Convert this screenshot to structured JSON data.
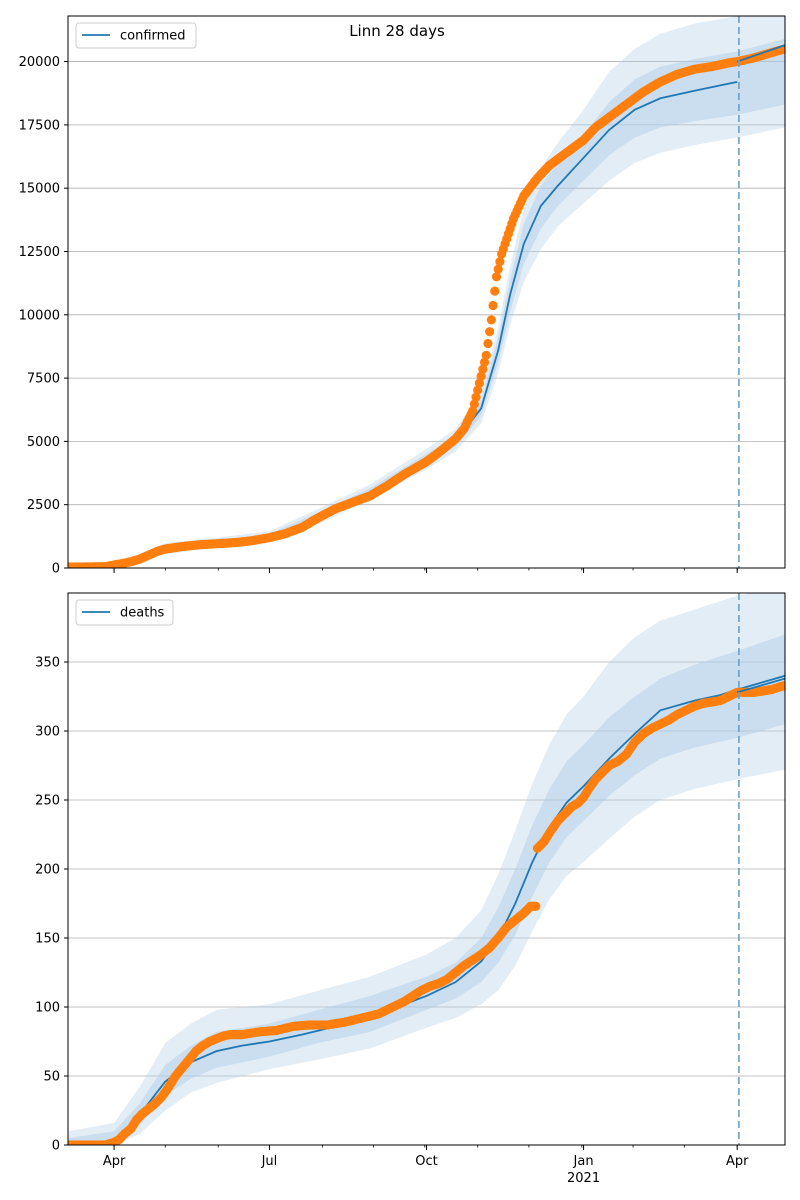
{
  "colors": {
    "line": "#1f77b4",
    "obs": "#ff7f0e",
    "band": "#aecbe6",
    "grid": "#b0b0b0",
    "vline": "#6a9fc8"
  },
  "chart_data": [
    {
      "type": "line",
      "title": "Linn 28 days",
      "legend": "top-left",
      "grid": "y",
      "x_ticks": [
        {
          "d": 0,
          "label": "Apr"
        },
        {
          "d": 91,
          "label": "Jul"
        },
        {
          "d": 183,
          "label": "Oct"
        },
        {
          "d": 275,
          "label": "Jan",
          "sub": "2021"
        },
        {
          "d": 365,
          "label": "Apr"
        }
      ],
      "ylim": [
        0,
        21800
      ],
      "y_ticks": [
        0,
        2500,
        5000,
        7500,
        10000,
        12500,
        15000,
        17500,
        20000
      ],
      "series_name": "confirmed",
      "model": [
        [
          -27,
          0
        ],
        [
          0,
          80
        ],
        [
          15,
          350
        ],
        [
          30,
          750
        ],
        [
          45,
          920
        ],
        [
          60,
          990
        ],
        [
          75,
          1080
        ],
        [
          91,
          1250
        ],
        [
          105,
          1550
        ],
        [
          120,
          2050
        ],
        [
          135,
          2550
        ],
        [
          150,
          3000
        ],
        [
          165,
          3600
        ],
        [
          183,
          4300
        ],
        [
          200,
          5000
        ],
        [
          215,
          6300
        ],
        [
          225,
          8600
        ],
        [
          232,
          10800
        ],
        [
          240,
          12800
        ],
        [
          250,
          14300
        ],
        [
          260,
          15100
        ],
        [
          275,
          16200
        ],
        [
          290,
          17300
        ],
        [
          305,
          18100
        ],
        [
          320,
          18550
        ],
        [
          340,
          18850
        ],
        [
          365,
          19200
        ]
      ],
      "band_inner": [
        [
          -27,
          0,
          0
        ],
        [
          0,
          60,
          110
        ],
        [
          30,
          650,
          860
        ],
        [
          60,
          900,
          1080
        ],
        [
          91,
          1150,
          1350
        ],
        [
          120,
          1900,
          2200
        ],
        [
          150,
          2850,
          3150
        ],
        [
          183,
          4100,
          4500
        ],
        [
          200,
          4800,
          5200
        ],
        [
          215,
          6000,
          6600
        ],
        [
          225,
          8100,
          9100
        ],
        [
          232,
          10100,
          11400
        ],
        [
          240,
          12000,
          13600
        ],
        [
          250,
          13400,
          15100
        ],
        [
          260,
          14300,
          16000
        ],
        [
          275,
          15300,
          17100
        ],
        [
          290,
          16300,
          18400
        ],
        [
          305,
          17000,
          19300
        ],
        [
          320,
          17400,
          19800
        ],
        [
          340,
          17650,
          20100
        ],
        [
          365,
          17900,
          20400
        ],
        [
          393,
          18300,
          20900
        ]
      ],
      "band_outer": [
        [
          -27,
          0,
          0
        ],
        [
          0,
          40,
          140
        ],
        [
          30,
          550,
          980
        ],
        [
          60,
          800,
          1200
        ],
        [
          91,
          1050,
          1450
        ],
        [
          120,
          1750,
          2350
        ],
        [
          150,
          2700,
          3300
        ],
        [
          183,
          3900,
          4700
        ],
        [
          200,
          4600,
          5500
        ],
        [
          215,
          5700,
          6900
        ],
        [
          225,
          7700,
          9500
        ],
        [
          232,
          9600,
          11900
        ],
        [
          240,
          11300,
          14200
        ],
        [
          250,
          12600,
          15800
        ],
        [
          260,
          13500,
          16800
        ],
        [
          275,
          14400,
          18100
        ],
        [
          290,
          15300,
          19600
        ],
        [
          305,
          16000,
          20500
        ],
        [
          320,
          16400,
          21100
        ],
        [
          340,
          16700,
          21500
        ],
        [
          365,
          17000,
          21800
        ],
        [
          393,
          17400,
          22300
        ]
      ],
      "obs_points": [
        [
          -27,
          40
        ],
        [
          -20,
          40
        ],
        [
          -10,
          50
        ],
        [
          -5,
          50
        ],
        [
          0,
          120
        ],
        [
          5,
          180
        ],
        [
          10,
          250
        ],
        [
          15,
          350
        ],
        [
          20,
          500
        ],
        [
          25,
          650
        ],
        [
          30,
          750
        ],
        [
          40,
          850
        ],
        [
          50,
          920
        ],
        [
          60,
          960
        ],
        [
          70,
          1000
        ],
        [
          80,
          1070
        ],
        [
          91,
          1200
        ],
        [
          100,
          1350
        ],
        [
          110,
          1600
        ],
        [
          120,
          2000
        ],
        [
          130,
          2350
        ],
        [
          140,
          2600
        ],
        [
          150,
          2850
        ],
        [
          160,
          3250
        ],
        [
          170,
          3700
        ],
        [
          183,
          4200
        ],
        [
          190,
          4550
        ],
        [
          200,
          5100
        ],
        [
          205,
          5500
        ],
        [
          210,
          6200
        ],
        [
          214,
          7300
        ],
        [
          218,
          8400
        ],
        [
          221,
          9800
        ],
        [
          224,
          11500
        ],
        [
          227,
          12400
        ],
        [
          230,
          13000
        ],
        [
          234,
          13800
        ],
        [
          240,
          14700
        ],
        [
          248,
          15400
        ],
        [
          255,
          15900
        ],
        [
          265,
          16400
        ],
        [
          275,
          16900
        ],
        [
          282,
          17400
        ],
        [
          290,
          17800
        ],
        [
          300,
          18300
        ],
        [
          310,
          18800
        ],
        [
          320,
          19200
        ],
        [
          330,
          19500
        ],
        [
          340,
          19700
        ],
        [
          350,
          19800
        ],
        [
          360,
          19950
        ],
        [
          365,
          20000
        ],
        [
          375,
          20150
        ],
        [
          385,
          20350
        ],
        [
          393,
          20500
        ]
      ],
      "forecast_line": [
        [
          365,
          20000
        ],
        [
          393,
          20650
        ]
      ],
      "vline_d": 366
    },
    {
      "type": "line",
      "title": "",
      "legend": "top-left",
      "grid": "y",
      "x_ticks": [
        {
          "d": 0,
          "label": "Apr"
        },
        {
          "d": 91,
          "label": "Jul"
        },
        {
          "d": 183,
          "label": "Oct"
        },
        {
          "d": 275,
          "label": "Jan",
          "sub": "2021"
        },
        {
          "d": 365,
          "label": "Apr"
        }
      ],
      "ylim": [
        0,
        400
      ],
      "y_ticks": [
        0,
        50,
        100,
        150,
        200,
        250,
        300,
        350
      ],
      "series_name": "deaths",
      "model": [
        [
          -27,
          0
        ],
        [
          -10,
          0
        ],
        [
          0,
          3
        ],
        [
          10,
          14
        ],
        [
          20,
          30
        ],
        [
          30,
          46
        ],
        [
          45,
          60
        ],
        [
          60,
          68
        ],
        [
          75,
          72
        ],
        [
          91,
          75
        ],
        [
          110,
          80
        ],
        [
          130,
          86
        ],
        [
          150,
          93
        ],
        [
          170,
          102
        ],
        [
          183,
          108
        ],
        [
          200,
          118
        ],
        [
          215,
          133
        ],
        [
          225,
          150
        ],
        [
          235,
          175
        ],
        [
          245,
          205
        ],
        [
          255,
          230
        ],
        [
          265,
          248
        ],
        [
          275,
          260
        ],
        [
          290,
          280
        ],
        [
          305,
          298
        ],
        [
          320,
          315
        ],
        [
          340,
          322
        ],
        [
          355,
          326
        ],
        [
          365,
          330
        ],
        [
          393,
          340
        ]
      ],
      "band_inner": [
        [
          -27,
          0,
          5
        ],
        [
          0,
          0,
          10
        ],
        [
          15,
          14,
          30
        ],
        [
          30,
          36,
          58
        ],
        [
          45,
          48,
          72
        ],
        [
          60,
          56,
          82
        ],
        [
          91,
          64,
          88
        ],
        [
          120,
          74,
          98
        ],
        [
          150,
          82,
          108
        ],
        [
          183,
          98,
          122
        ],
        [
          200,
          106,
          132
        ],
        [
          215,
          118,
          150
        ],
        [
          225,
          132,
          172
        ],
        [
          235,
          152,
          200
        ],
        [
          245,
          180,
          232
        ],
        [
          255,
          205,
          258
        ],
        [
          265,
          223,
          278
        ],
        [
          275,
          235,
          290
        ],
        [
          290,
          253,
          310
        ],
        [
          305,
          268,
          325
        ],
        [
          320,
          280,
          338
        ],
        [
          340,
          288,
          348
        ],
        [
          365,
          295,
          358
        ],
        [
          393,
          305,
          370
        ]
      ],
      "band_outer": [
        [
          -27,
          0,
          10
        ],
        [
          0,
          0,
          16
        ],
        [
          15,
          8,
          42
        ],
        [
          30,
          25,
          74
        ],
        [
          45,
          38,
          88
        ],
        [
          60,
          45,
          98
        ],
        [
          91,
          55,
          102
        ],
        [
          120,
          62,
          112
        ],
        [
          150,
          70,
          122
        ],
        [
          183,
          85,
          138
        ],
        [
          200,
          92,
          150
        ],
        [
          215,
          102,
          170
        ],
        [
          225,
          112,
          196
        ],
        [
          235,
          130,
          228
        ],
        [
          245,
          155,
          262
        ],
        [
          255,
          178,
          290
        ],
        [
          265,
          195,
          312
        ],
        [
          275,
          205,
          325
        ],
        [
          290,
          222,
          350
        ],
        [
          305,
          238,
          368
        ],
        [
          320,
          250,
          380
        ],
        [
          340,
          258,
          388
        ],
        [
          365,
          265,
          398
        ],
        [
          393,
          272,
          405
        ]
      ],
      "obs_points": [
        [
          -27,
          0
        ],
        [
          -20,
          0
        ],
        [
          -15,
          0
        ],
        [
          -10,
          0
        ],
        [
          -5,
          0
        ],
        [
          0,
          2
        ],
        [
          3,
          4
        ],
        [
          6,
          8
        ],
        [
          10,
          12
        ],
        [
          13,
          18
        ],
        [
          16,
          22
        ],
        [
          20,
          26
        ],
        [
          24,
          30
        ],
        [
          28,
          35
        ],
        [
          32,
          42
        ],
        [
          36,
          50
        ],
        [
          40,
          56
        ],
        [
          44,
          62
        ],
        [
          48,
          68
        ],
        [
          52,
          72
        ],
        [
          56,
          75
        ],
        [
          60,
          77
        ],
        [
          64,
          79
        ],
        [
          68,
          80
        ],
        [
          75,
          80
        ],
        [
          85,
          82
        ],
        [
          95,
          83
        ],
        [
          105,
          86
        ],
        [
          115,
          87
        ],
        [
          125,
          87
        ],
        [
          135,
          89
        ],
        [
          145,
          92
        ],
        [
          155,
          95
        ],
        [
          160,
          98
        ],
        [
          165,
          101
        ],
        [
          170,
          104
        ],
        [
          175,
          108
        ],
        [
          180,
          112
        ],
        [
          185,
          115
        ],
        [
          190,
          117
        ],
        [
          195,
          120
        ],
        [
          200,
          125
        ],
        [
          205,
          130
        ],
        [
          210,
          134
        ],
        [
          215,
          138
        ],
        [
          220,
          143
        ],
        [
          225,
          150
        ],
        [
          230,
          158
        ],
        [
          235,
          163
        ],
        [
          240,
          168
        ],
        [
          244,
          173
        ],
        [
          247,
          173
        ],
        [
          248,
          215
        ],
        [
          252,
          220
        ],
        [
          256,
          228
        ],
        [
          260,
          235
        ],
        [
          264,
          240
        ],
        [
          268,
          245
        ],
        [
          272,
          248
        ],
        [
          275,
          252
        ],
        [
          278,
          258
        ],
        [
          282,
          265
        ],
        [
          286,
          270
        ],
        [
          290,
          275
        ],
        [
          295,
          278
        ],
        [
          300,
          283
        ],
        [
          305,
          292
        ],
        [
          310,
          298
        ],
        [
          315,
          302
        ],
        [
          320,
          305
        ],
        [
          325,
          308
        ],
        [
          330,
          312
        ],
        [
          335,
          315
        ],
        [
          340,
          318
        ],
        [
          345,
          320
        ],
        [
          350,
          321
        ],
        [
          355,
          322
        ],
        [
          360,
          325
        ],
        [
          365,
          328
        ],
        [
          370,
          328
        ],
        [
          375,
          328
        ],
        [
          380,
          329
        ],
        [
          385,
          330
        ],
        [
          390,
          332
        ],
        [
          393,
          333
        ]
      ],
      "forecast_line": [
        [
          365,
          328
        ],
        [
          393,
          338
        ]
      ],
      "vline_d": 366
    }
  ]
}
